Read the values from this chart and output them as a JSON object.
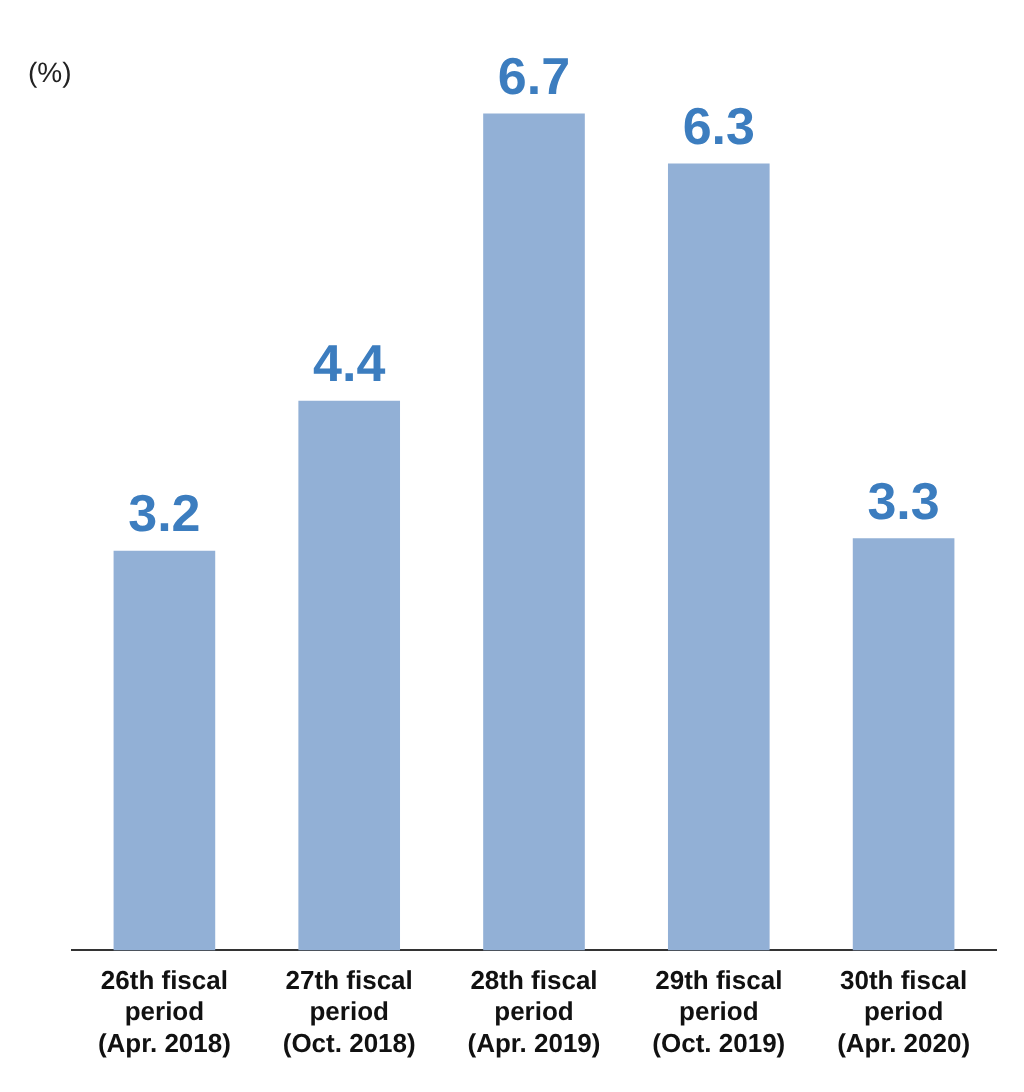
{
  "chart_data": {
    "type": "bar",
    "ylabel": "(%)",
    "categories": [
      "26th fiscal\nperiod\n(Apr. 2018)",
      "27th fiscal\nperiod\n(Oct. 2018)",
      "28th fiscal\nperiod\n(Apr. 2019)",
      "29th fiscal\nperiod\n(Oct. 2019)",
      "30th fiscal\nperiod\n(Apr. 2020)"
    ],
    "values": [
      3.2,
      4.4,
      6.7,
      6.3,
      3.3
    ],
    "color": "#92b0d6",
    "data_labels": true,
    "grid": false,
    "legend": false,
    "tick_labels": "x"
  }
}
